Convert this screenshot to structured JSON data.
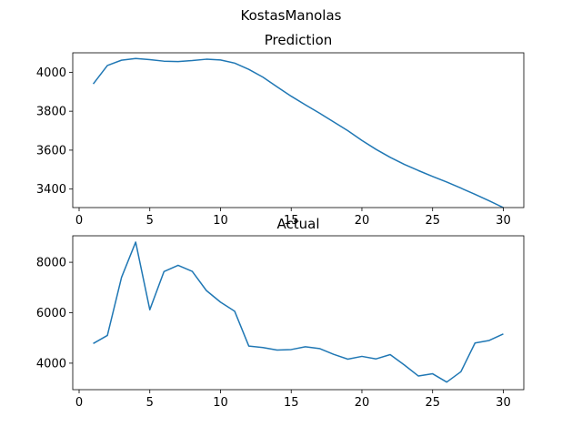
{
  "figure": {
    "suptitle": "KostasManolas"
  },
  "colors": {
    "line": "#1f77b4",
    "axes": "#000000",
    "background": "#ffffff"
  },
  "chart_data": [
    {
      "type": "line",
      "title": "Prediction",
      "xlabel": "",
      "ylabel": "",
      "xlim": [
        -0.45,
        31.45
      ],
      "ylim": [
        3305,
        4100
      ],
      "xticks": [
        0,
        5,
        10,
        15,
        20,
        25,
        30
      ],
      "yticks": [
        3400,
        3600,
        3800,
        4000
      ],
      "grid": false,
      "legend": "none",
      "series": [
        {
          "x": [
            1,
            2,
            3,
            4,
            5,
            6,
            7,
            8,
            9,
            10,
            11,
            12,
            13,
            14,
            15,
            16,
            17,
            18,
            19,
            20,
            21,
            22,
            23,
            24,
            25,
            26,
            27,
            28,
            29,
            30
          ],
          "y": [
            3940,
            4035,
            4062,
            4071,
            4065,
            4057,
            4055,
            4060,
            4067,
            4063,
            4047,
            4015,
            3975,
            3925,
            3877,
            3833,
            3790,
            3745,
            3700,
            3650,
            3604,
            3563,
            3527,
            3495,
            3465,
            3436,
            3405,
            3373,
            3340,
            3305
          ]
        }
      ]
    },
    {
      "type": "line",
      "title": "Actual",
      "xlabel": "",
      "ylabel": "",
      "xlim": [
        -0.45,
        31.45
      ],
      "ylim": [
        2950,
        9050
      ],
      "xticks": [
        0,
        5,
        10,
        15,
        20,
        25,
        30
      ],
      "yticks": [
        4000,
        6000,
        8000
      ],
      "grid": false,
      "legend": "none",
      "series": [
        {
          "x": [
            1,
            2,
            3,
            4,
            5,
            6,
            7,
            8,
            9,
            10,
            11,
            12,
            13,
            14,
            15,
            16,
            17,
            18,
            19,
            20,
            21,
            22,
            23,
            24,
            25,
            26,
            27,
            28,
            29,
            30
          ],
          "y": [
            4780,
            5100,
            7400,
            8800,
            6120,
            7630,
            7880,
            7640,
            6880,
            6420,
            6060,
            4680,
            4620,
            4520,
            4540,
            4650,
            4580,
            4350,
            4160,
            4270,
            4170,
            4340,
            3930,
            3490,
            3580,
            3250,
            3660,
            4800,
            4900,
            5160
          ]
        }
      ]
    }
  ]
}
